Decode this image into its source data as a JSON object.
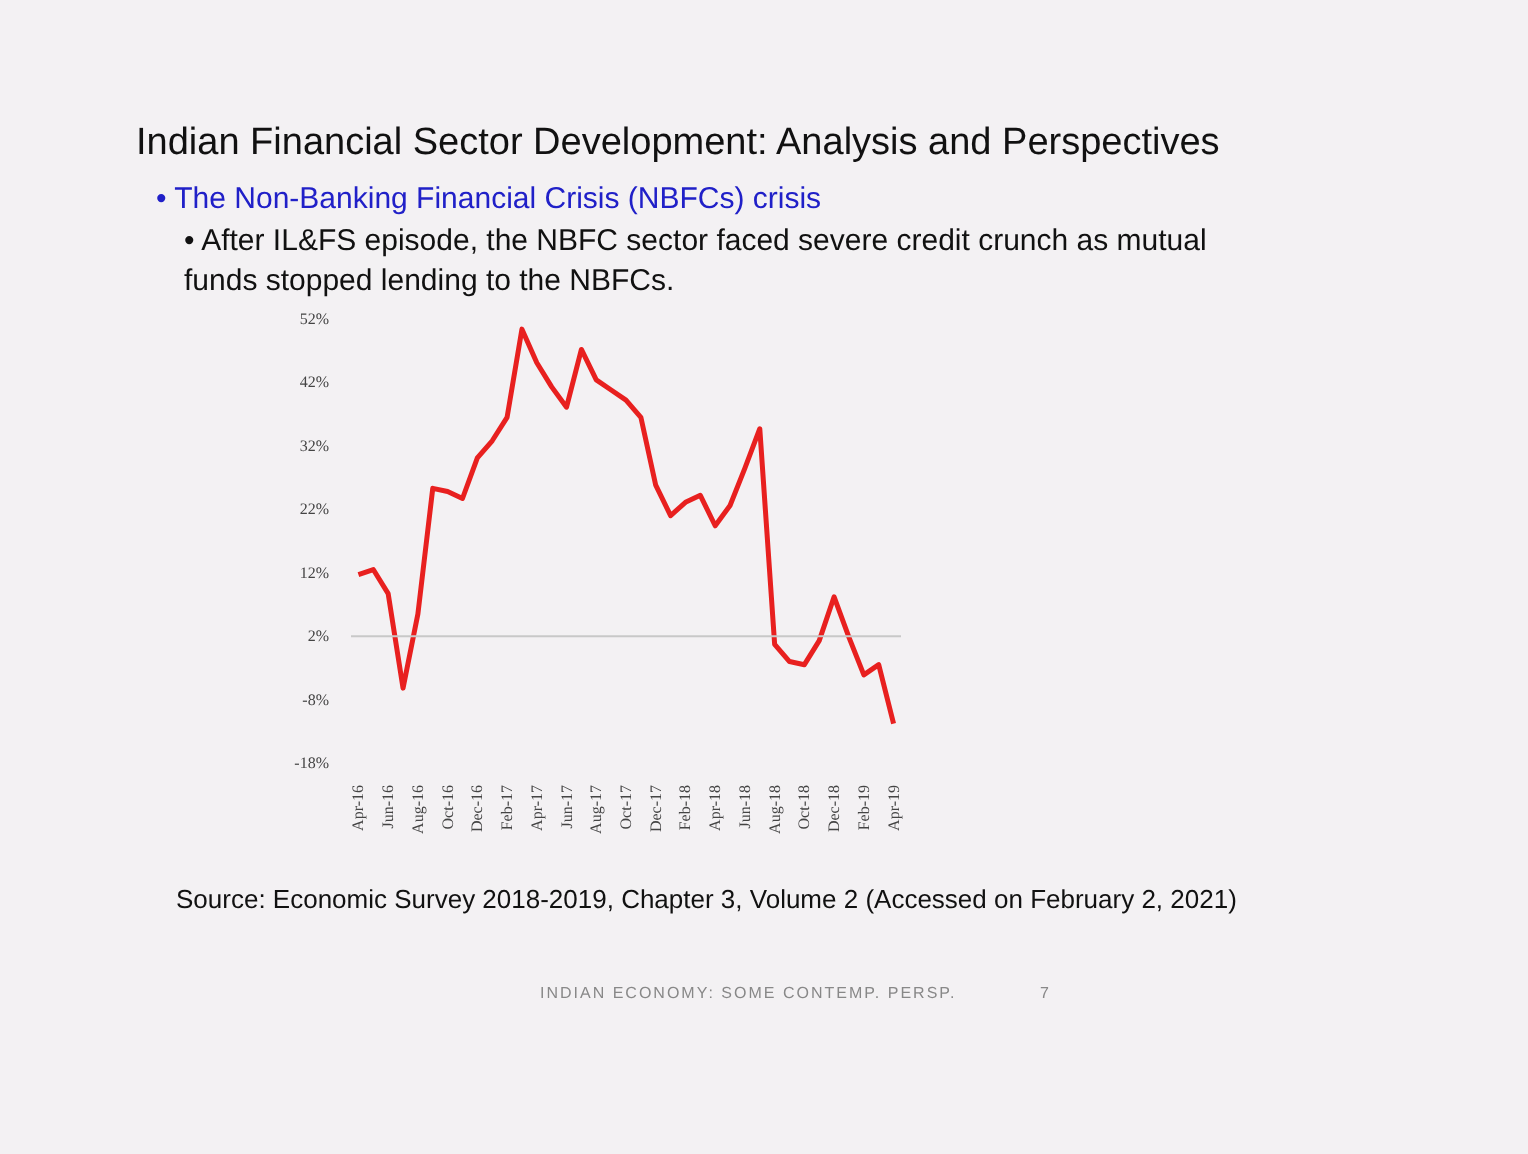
{
  "chart_data": {
    "type": "line",
    "title": "Indian Financial Sector Development: Analysis and Perspectives",
    "subtitle": "• The Non-Banking Financial Crisis (NBFCs) crisis",
    "annotations": [
      "• After IL&FS episode, the NBFC sector faced severe credit crunch as mutual funds stopped lending to the NBFCs.",
      "Source: Economic Survey 2018-2019, Chapter 3, Volume 2 (Accessed on February 2, 2021)",
      "INDIAN ECONOMY: SOME CONTEMP. PERSP.",
      "7"
    ],
    "categories": [
      "Apr-16",
      null,
      "Jun-16",
      null,
      "Aug-16",
      null,
      "Oct-16",
      null,
      "Dec-16",
      null,
      "Feb-17",
      null,
      "Apr-17",
      null,
      "Jun-17",
      null,
      "Aug-17",
      null,
      "Oct-17",
      null,
      "Dec-17",
      null,
      "Feb-18",
      null,
      "Apr-18",
      null,
      "Jun-18",
      null,
      "Aug-18",
      null,
      "Oct-18",
      null,
      "Dec-18",
      null,
      "Feb-19",
      null,
      "Apr-19"
    ],
    "series": [
      {
        "color": "#e8201f",
        "values": [
          11.7,
          12.5,
          8.7,
          -6.2,
          5.5,
          25.3,
          24.8,
          23.7,
          30.1,
          32.8,
          36.5,
          50.4,
          45.1,
          41.3,
          38.1,
          47.2,
          42.4,
          40.8,
          39.2,
          36.5,
          25.8,
          21.0,
          23.1,
          24.2,
          19.4,
          22.6,
          28.5,
          34.7,
          0.7,
          -2.0,
          -2.5,
          1.3,
          8.2,
          1.8,
          -4.1,
          -2.5,
          -11.8
        ]
      }
    ],
    "ylim": [
      -18,
      52
    ],
    "yticks": [
      {
        "value": 52,
        "label": "52%"
      },
      {
        "value": 42,
        "label": "42%"
      },
      {
        "value": 32,
        "label": "32%"
      },
      {
        "value": 22,
        "label": "22%"
      },
      {
        "value": 12,
        "label": "12%"
      },
      {
        "value": 2,
        "label": "2%"
      },
      {
        "value": -8,
        "label": "-8%"
      },
      {
        "value": -18,
        "label": "-18%"
      }
    ],
    "ref_lines": [
      {
        "axis": "y",
        "value": 2,
        "label": null,
        "color": "#c8c8c8"
      }
    ],
    "grid": false,
    "marker": "none",
    "line_style": "solid"
  }
}
